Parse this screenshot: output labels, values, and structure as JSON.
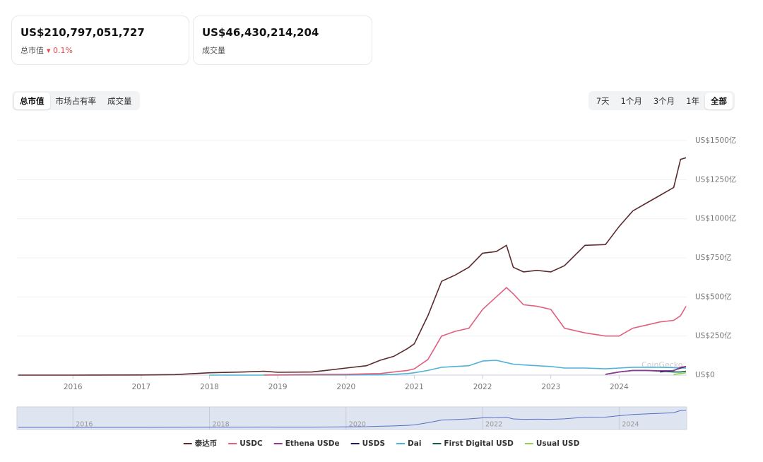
{
  "stats": [
    {
      "value": "US$210,797,051,727",
      "label": "总市值",
      "change": "0.1%"
    },
    {
      "value": "US$46,430,214,204",
      "label": "成交量"
    }
  ],
  "tabs": [
    "总市值",
    "市场占有率",
    "成交量"
  ],
  "active_tab": 0,
  "ranges": [
    "7天",
    "1个月",
    "3个月",
    "1年",
    "全部"
  ],
  "active_range": 4,
  "chart_data": {
    "type": "line",
    "watermark": "CoinGecko",
    "x": [
      2015.2,
      2016,
      2017,
      2017.5,
      2018,
      2018.5,
      2018.8,
      2019,
      2019.5,
      2019.7,
      2020,
      2020.3,
      2020.5,
      2020.7,
      2020.9,
      2021,
      2021.2,
      2021.4,
      2021.6,
      2021.8,
      2022,
      2022.2,
      2022.35,
      2022.45,
      2022.6,
      2022.8,
      2023,
      2023.2,
      2023.5,
      2023.8,
      2024,
      2024.2,
      2024.4,
      2024.6,
      2024.8,
      2024.9,
      2024.98
    ],
    "xlim": [
      2015.18,
      2024.99
    ],
    "xticks": [
      2016,
      2017,
      2018,
      2019,
      2020,
      2021,
      2022,
      2023,
      2024
    ],
    "ylim": [
      0,
      1500
    ],
    "yticks": [
      {
        "value": 0,
        "label": "US$0"
      },
      {
        "value": 250,
        "label": "US$250亿"
      },
      {
        "value": 500,
        "label": "US$500亿"
      },
      {
        "value": 750,
        "label": "US$750亿"
      },
      {
        "value": 1000,
        "label": "US$1000亿"
      },
      {
        "value": 1250,
        "label": "US$1250亿"
      },
      {
        "value": 1500,
        "label": "US$1500亿"
      }
    ],
    "grid": true,
    "series": [
      {
        "name": "泰达币",
        "color": "#5b2a2e",
        "values": [
          0,
          0,
          1,
          3,
          15,
          20,
          25,
          18,
          20,
          30,
          45,
          60,
          95,
          120,
          170,
          200,
          380,
          600,
          640,
          690,
          780,
          790,
          830,
          690,
          660,
          670,
          660,
          700,
          830,
          835,
          950,
          1050,
          1100,
          1150,
          1200,
          1380,
          1390
        ]
      },
      {
        "name": "USDC",
        "color": "#e0607e",
        "values": [
          null,
          null,
          null,
          null,
          null,
          null,
          1,
          2,
          4,
          5,
          5,
          8,
          10,
          20,
          30,
          40,
          100,
          250,
          280,
          300,
          420,
          500,
          560,
          520,
          450,
          440,
          420,
          300,
          270,
          250,
          250,
          300,
          320,
          340,
          350,
          380,
          440
        ]
      },
      {
        "name": "Ethena USDe",
        "color": "#8e3a8e",
        "values": [
          null,
          null,
          null,
          null,
          null,
          null,
          null,
          null,
          null,
          null,
          null,
          null,
          null,
          null,
          null,
          null,
          null,
          null,
          null,
          null,
          null,
          null,
          null,
          null,
          null,
          null,
          null,
          null,
          null,
          5,
          20,
          30,
          30,
          28,
          28,
          50,
          55
        ]
      },
      {
        "name": "USDS",
        "color": "#1f1f5e",
        "values": [
          null,
          null,
          null,
          null,
          null,
          null,
          null,
          null,
          null,
          null,
          null,
          null,
          null,
          null,
          null,
          null,
          null,
          null,
          null,
          null,
          null,
          null,
          null,
          null,
          null,
          null,
          null,
          null,
          null,
          null,
          null,
          null,
          null,
          20,
          30,
          45,
          55
        ]
      },
      {
        "name": "Dai",
        "color": "#4fb3d9",
        "values": [
          null,
          null,
          null,
          null,
          0,
          0,
          0,
          0,
          1,
          1,
          1,
          2,
          2,
          5,
          10,
          15,
          30,
          50,
          55,
          60,
          90,
          95,
          80,
          70,
          65,
          60,
          55,
          45,
          45,
          40,
          45,
          50,
          50,
          50,
          48,
          45,
          45
        ]
      },
      {
        "name": "First Digital USD",
        "color": "#0f5e4d",
        "values": [
          null,
          null,
          null,
          null,
          null,
          null,
          null,
          null,
          null,
          null,
          null,
          null,
          null,
          null,
          null,
          null,
          null,
          null,
          null,
          null,
          null,
          null,
          null,
          null,
          null,
          null,
          null,
          null,
          null,
          5,
          20,
          30,
          30,
          25,
          20,
          20,
          25
        ]
      },
      {
        "name": "Usual USD",
        "color": "#8fd14f",
        "values": [
          null,
          null,
          null,
          null,
          null,
          null,
          null,
          null,
          null,
          null,
          null,
          null,
          null,
          null,
          null,
          null,
          null,
          null,
          null,
          null,
          null,
          null,
          null,
          null,
          null,
          null,
          null,
          null,
          null,
          null,
          null,
          null,
          null,
          null,
          5,
          10,
          15
        ]
      }
    ]
  }
}
